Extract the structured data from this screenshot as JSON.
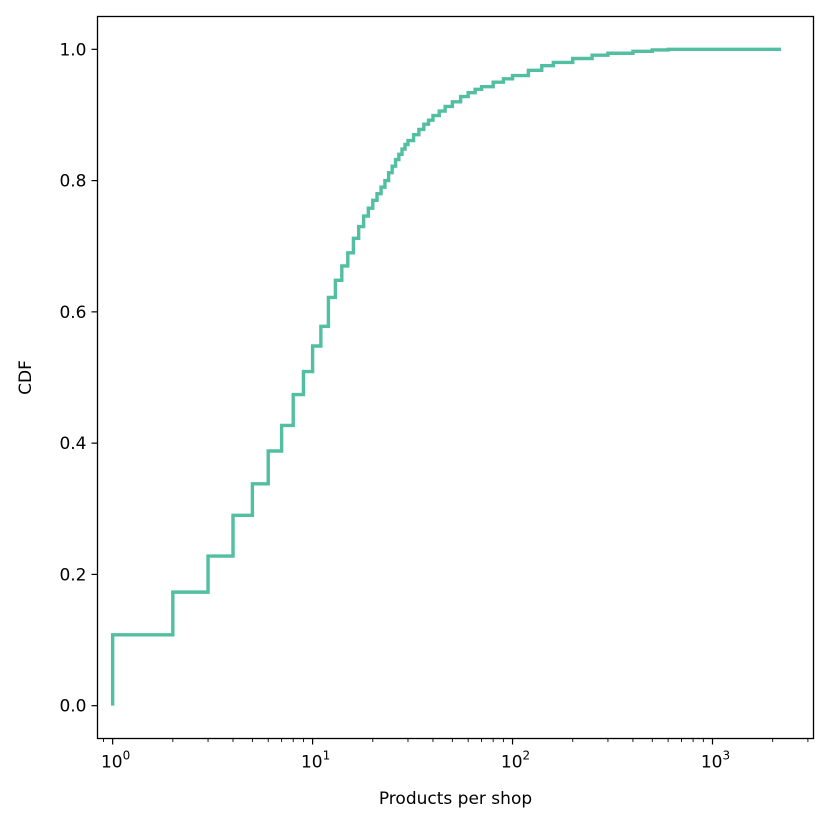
{
  "chart_data": {
    "type": "line",
    "title": "",
    "xlabel": "Products per shop",
    "ylabel": "CDF",
    "x_scale": "log",
    "xlim": [
      0.84,
      3200
    ],
    "ylim": [
      -0.05,
      1.05
    ],
    "grid": false,
    "legend": "none",
    "line_color": "#52bea2",
    "x_ticks": [
      {
        "base": "10",
        "exp": "0",
        "value": 1
      },
      {
        "base": "10",
        "exp": "1",
        "value": 10
      },
      {
        "base": "10",
        "exp": "2",
        "value": 100
      },
      {
        "base": "10",
        "exp": "3",
        "value": 1000
      }
    ],
    "y_ticks": [
      {
        "label": "0.0",
        "value": 0.0
      },
      {
        "label": "0.2",
        "value": 0.2
      },
      {
        "label": "0.4",
        "value": 0.4
      },
      {
        "label": "0.6",
        "value": 0.6
      },
      {
        "label": "0.8",
        "value": 0.8
      },
      {
        "label": "1.0",
        "value": 1.0
      }
    ],
    "series": [
      {
        "step": "post",
        "x": [
          1,
          2,
          3,
          4,
          5,
          6,
          7,
          8,
          9,
          10,
          11,
          12,
          13,
          14,
          15,
          16,
          17,
          18,
          19,
          20,
          21,
          22,
          23,
          24,
          25,
          26,
          27,
          28,
          29,
          30,
          32,
          34,
          36,
          38,
          40,
          43,
          46,
          50,
          55,
          60,
          65,
          70,
          80,
          90,
          100,
          120,
          140,
          160,
          200,
          250,
          300,
          400,
          500,
          600,
          800,
          1000,
          1500,
          2200
        ],
        "y": [
          0.108,
          0.173,
          0.228,
          0.29,
          0.338,
          0.388,
          0.427,
          0.474,
          0.509,
          0.548,
          0.578,
          0.622,
          0.648,
          0.67,
          0.69,
          0.712,
          0.73,
          0.746,
          0.758,
          0.77,
          0.78,
          0.79,
          0.8,
          0.812,
          0.822,
          0.832,
          0.84,
          0.848,
          0.855,
          0.861,
          0.87,
          0.878,
          0.886,
          0.892,
          0.899,
          0.906,
          0.913,
          0.92,
          0.928,
          0.934,
          0.939,
          0.943,
          0.95,
          0.955,
          0.96,
          0.968,
          0.975,
          0.98,
          0.986,
          0.991,
          0.994,
          0.997,
          0.999,
          1.0,
          1.0,
          1.0,
          1.0,
          1.0
        ]
      }
    ]
  }
}
